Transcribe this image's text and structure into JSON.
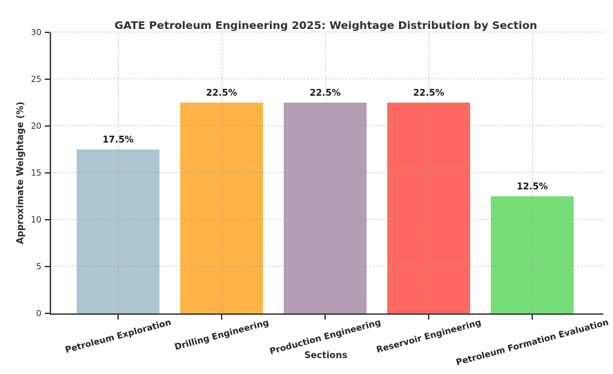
{
  "chart_data": {
    "type": "bar",
    "title": "GATE Petroleum Engineering 2025: Weightage Distribution by Section",
    "xlabel": "Sections",
    "ylabel": "Approximate Weightage (%)",
    "categories": [
      "Petroleum Exploration",
      "Drilling Engineering",
      "Production Engineering",
      "Reservoir Engineering",
      "Petroleum Formation Evaluation"
    ],
    "values": [
      17.5,
      22.5,
      22.5,
      22.5,
      12.5
    ],
    "bar_labels": [
      "17.5%",
      "22.5%",
      "22.5%",
      "22.5%",
      "12.5%"
    ],
    "bar_colors": [
      "#AEC6CF",
      "#FFB347",
      "#B39EB5",
      "#FF6961",
      "#77DD77"
    ],
    "ylim": [
      0,
      30
    ],
    "yticks": [
      0,
      5,
      10,
      15,
      20,
      25,
      30
    ],
    "xtick_rotation_deg": 15,
    "grid": {
      "style": "dashed",
      "horizontal": true,
      "vertical": true
    },
    "legend": "none"
  },
  "style": {
    "background": "#ffffff",
    "grid_color": "#a0a0a0",
    "axis_color": "#3a3a3a",
    "text_color": "#2e2e2e"
  }
}
